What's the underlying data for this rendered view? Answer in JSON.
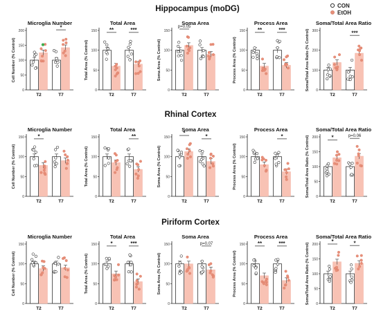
{
  "legend": {
    "entries": [
      {
        "label": "CON",
        "marker": "open-circle",
        "color": "#444444"
      },
      {
        "label": "EtOH",
        "marker": "filled-circle",
        "color": "#e8907a"
      }
    ],
    "placement": "top-right"
  },
  "colors": {
    "con_fill": "#ffffff",
    "con_edge": "#333333",
    "etoh_fill": "#f8c2b4",
    "etoh_dot": "#e8907a",
    "outlier": "#3cb44b"
  },
  "sections": [
    {
      "title": "Hippocampus (moDG)"
    },
    {
      "title": "Rhinal Cortex"
    },
    {
      "title": "Piriform Cortex"
    }
  ],
  "chart_data": [
    {
      "type": "bar",
      "section": "Hippocampus (moDG)",
      "title": "Microglia Number",
      "ylabel": "Cell Number (% Control)",
      "ylim": [
        0,
        200
      ],
      "yticks": [
        "0",
        "50",
        "100",
        "150",
        "200"
      ],
      "categories": [
        "T2",
        "T7"
      ],
      "series": [
        {
          "name": "CON",
          "values": [
            100,
            100
          ]
        },
        {
          "name": "EtOH",
          "values": [
            125,
            142
          ]
        }
      ],
      "annotations": [
        {
          "group": "T7",
          "text": "*"
        }
      ]
    },
    {
      "type": "bar",
      "section": "Hippocampus (moDG)",
      "title": "Total Area",
      "ylabel": "Total Area (% Control)",
      "ylim": [
        0,
        150
      ],
      "yticks": [
        "0",
        "50",
        "100",
        "150"
      ],
      "categories": [
        "T2",
        "T7"
      ],
      "series": [
        {
          "name": "CON",
          "values": [
            100,
            100
          ]
        },
        {
          "name": "EtOH",
          "values": [
            60,
            65
          ]
        }
      ],
      "annotations": [
        {
          "group": "T2",
          "text": "**"
        },
        {
          "group": "T7",
          "text": "***"
        }
      ]
    },
    {
      "type": "bar",
      "section": "Hippocampus (moDG)",
      "title": "Soma Area",
      "ylabel": "Soma Area (% Control)",
      "ylim": [
        0,
        150
      ],
      "yticks": [
        "0",
        "50",
        "100",
        "150"
      ],
      "categories": [
        "T2",
        "T7"
      ],
      "series": [
        {
          "name": "CON",
          "values": [
            100,
            100
          ]
        },
        {
          "name": "EtOH",
          "values": [
            112,
            90
          ]
        }
      ],
      "annotations": [
        {
          "group": "T2",
          "text": "p=0.05"
        }
      ]
    },
    {
      "type": "bar",
      "section": "Hippocampus (moDG)",
      "title": "Process Area",
      "ylabel": "Process Area (% Control)",
      "ylim": [
        0,
        150
      ],
      "yticks": [
        "0",
        "50",
        "100",
        "150"
      ],
      "categories": [
        "T2",
        "T7"
      ],
      "series": [
        {
          "name": "CON",
          "values": [
            100,
            100
          ]
        },
        {
          "name": "EtOH",
          "values": [
            60,
            62
          ]
        }
      ],
      "annotations": [
        {
          "group": "T2",
          "text": "**"
        },
        {
          "group": "T7",
          "text": "***"
        }
      ]
    },
    {
      "type": "bar",
      "section": "Hippocampus (moDG)",
      "title": "Soma/Total Area Ratio",
      "ylabel": "Soma/Total Area Ratio (% Control)",
      "ylim": [
        0,
        300
      ],
      "yticks": [
        "0",
        "100",
        "200",
        "300"
      ],
      "categories": [
        "T2",
        "T7"
      ],
      "series": [
        {
          "name": "CON",
          "values": [
            100,
            100
          ]
        },
        {
          "name": "EtOH",
          "values": [
            138,
            185
          ]
        }
      ],
      "annotations": [
        {
          "group": "T7",
          "text": "***"
        }
      ]
    },
    {
      "type": "bar",
      "section": "Rhinal Cortex",
      "title": "Microglia Number",
      "ylabel": "Cell Number (% Control)",
      "ylim": [
        0,
        150
      ],
      "yticks": [
        "0",
        "50",
        "100",
        "150"
      ],
      "categories": [
        "T2",
        "T7"
      ],
      "series": [
        {
          "name": "CON",
          "values": [
            100,
            100
          ]
        },
        {
          "name": "EtOH",
          "values": [
            78,
            90
          ]
        }
      ],
      "annotations": [
        {
          "group": "T2",
          "text": "*"
        }
      ]
    },
    {
      "type": "bar",
      "section": "Rhinal Cortex",
      "title": "Total Area",
      "ylabel": "Total Area (% Control)",
      "ylim": [
        0,
        150
      ],
      "yticks": [
        "0",
        "50",
        "100",
        "150"
      ],
      "categories": [
        "T2",
        "T7"
      ],
      "series": [
        {
          "name": "CON",
          "values": [
            100,
            100
          ]
        },
        {
          "name": "EtOH",
          "values": [
            85,
            68
          ]
        }
      ],
      "annotations": [
        {
          "group": "T7",
          "text": "**"
        }
      ]
    },
    {
      "type": "bar",
      "section": "Rhinal Cortex",
      "title": "Soma Area",
      "ylabel": "Soma Area (% Control)",
      "ylim": [
        0,
        150
      ],
      "yticks": [
        "0",
        "50",
        "100",
        "150"
      ],
      "categories": [
        "T2",
        "T7"
      ],
      "series": [
        {
          "name": "CON",
          "values": [
            100,
            100
          ]
        },
        {
          "name": "EtOH",
          "values": [
            113,
            88
          ]
        }
      ],
      "annotations": [
        {
          "group": "T2",
          "text": "*"
        },
        {
          "group": "T7",
          "text": "*"
        }
      ]
    },
    {
      "type": "bar",
      "section": "Rhinal Cortex",
      "title": "Process Area",
      "ylabel": "Process Area (% Control)",
      "ylim": [
        0,
        150
      ],
      "yticks": [
        "0",
        "50",
        "100",
        "150"
      ],
      "categories": [
        "T2",
        "T7"
      ],
      "series": [
        {
          "name": "CON",
          "values": [
            100,
            100
          ]
        },
        {
          "name": "EtOH",
          "values": [
            80,
            62
          ]
        }
      ],
      "annotations": [
        {
          "group": "T7",
          "text": "*"
        }
      ]
    },
    {
      "type": "bar",
      "section": "Rhinal Cortex",
      "title": "Soma/Total Area Ratio",
      "ylabel": "Soma/Total Area Ratio (% Control)",
      "ylim": [
        0,
        200
      ],
      "yticks": [
        "0",
        "50",
        "100",
        "150",
        "200"
      ],
      "categories": [
        "T2",
        "T7"
      ],
      "series": [
        {
          "name": "CON",
          "values": [
            100,
            100
          ]
        },
        {
          "name": "EtOH",
          "values": [
            130,
            135
          ]
        }
      ],
      "annotations": [
        {
          "group": "T2",
          "text": "*"
        },
        {
          "group": "T7",
          "text": "p=0.06"
        }
      ]
    },
    {
      "type": "bar",
      "section": "Piriform Cortex",
      "title": "Microglia Number",
      "ylabel": "Cell Number (% Control)",
      "ylim": [
        0,
        150
      ],
      "yticks": [
        "0",
        "50",
        "100",
        "150"
      ],
      "categories": [
        "T2",
        "T7"
      ],
      "series": [
        {
          "name": "CON",
          "values": [
            100,
            100
          ]
        },
        {
          "name": "EtOH",
          "values": [
            88,
            90
          ]
        }
      ],
      "annotations": []
    },
    {
      "type": "bar",
      "section": "Piriform Cortex",
      "title": "Total Area",
      "ylabel": "Total Area (% Control)",
      "ylim": [
        0,
        150
      ],
      "yticks": [
        "0",
        "50",
        "100",
        "150"
      ],
      "categories": [
        "T2",
        "T7"
      ],
      "series": [
        {
          "name": "CON",
          "values": [
            100,
            100
          ]
        },
        {
          "name": "EtOH",
          "values": [
            75,
            55
          ]
        }
      ],
      "annotations": [
        {
          "group": "T2",
          "text": "*"
        },
        {
          "group": "T7",
          "text": "***"
        }
      ]
    },
    {
      "type": "bar",
      "section": "Piriform Cortex",
      "title": "Soma Area",
      "ylabel": "Soma Area (% Control)",
      "ylim": [
        0,
        150
      ],
      "yticks": [
        "0",
        "50",
        "100",
        "150"
      ],
      "categories": [
        "T2",
        "T7"
      ],
      "series": [
        {
          "name": "CON",
          "values": [
            100,
            100
          ]
        },
        {
          "name": "EtOH",
          "values": [
            100,
            85
          ]
        }
      ],
      "annotations": [
        {
          "group": "T7",
          "text": "p=0.07"
        }
      ]
    },
    {
      "type": "bar",
      "section": "Piriform Cortex",
      "title": "Process Area",
      "ylabel": "Process Area (% Control)",
      "ylim": [
        0,
        150
      ],
      "yticks": [
        "0",
        "50",
        "100",
        "150"
      ],
      "categories": [
        "T2",
        "T7"
      ],
      "series": [
        {
          "name": "CON",
          "values": [
            100,
            100
          ]
        },
        {
          "name": "EtOH",
          "values": [
            70,
            58
          ]
        }
      ],
      "annotations": [
        {
          "group": "T2",
          "text": "**"
        },
        {
          "group": "T7",
          "text": "***"
        }
      ]
    },
    {
      "type": "bar",
      "section": "Piriform Cortex",
      "title": "Soma/Total Area Ratio",
      "ylabel": "Soma/Total Area Ratio (% Control)",
      "ylim": [
        0,
        200
      ],
      "yticks": [
        "0",
        "50",
        "100",
        "150",
        "200"
      ],
      "categories": [
        "T2",
        "T7"
      ],
      "series": [
        {
          "name": "CON",
          "values": [
            100,
            100
          ]
        },
        {
          "name": "EtOH",
          "values": [
            140,
            135
          ]
        }
      ],
      "annotations": [
        {
          "group": "T2",
          "text": "*"
        },
        {
          "group": "T7",
          "text": "*"
        }
      ]
    }
  ]
}
